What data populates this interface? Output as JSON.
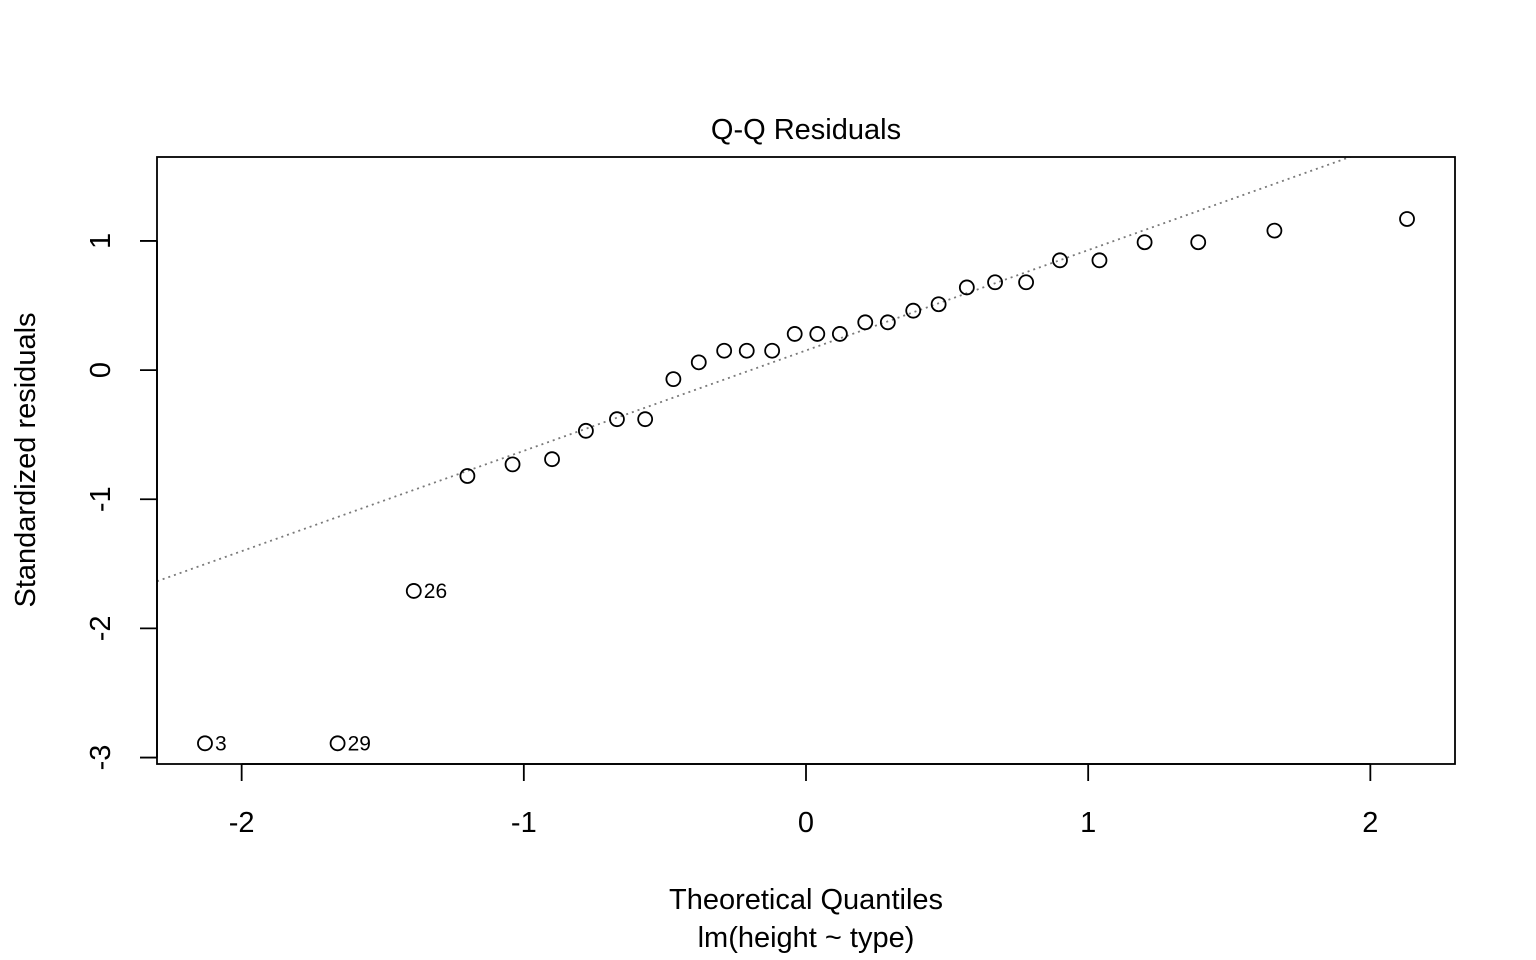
{
  "chart_data": {
    "type": "scatter",
    "title": "Q-Q Residuals",
    "xlabel": "Theoretical Quantiles",
    "sub": "lm(height ~ type)",
    "ylabel": "Standardized residuals",
    "xlim": [
      -2.3,
      2.3
    ],
    "ylim": [
      -3.05,
      1.65
    ],
    "xticks": [
      -2,
      -1,
      0,
      1,
      2
    ],
    "xtick_labels": [
      "-2",
      "-1",
      "0",
      "1",
      "2"
    ],
    "yticks": [
      -3,
      -2,
      -1,
      0,
      1
    ],
    "ytick_labels": [
      "-3",
      "-2",
      "-1",
      "0",
      "1"
    ],
    "grid": false,
    "point_style": "open circle",
    "reference_line": {
      "style": "dotted",
      "color": "#7a7a7a",
      "intercept": 0.152,
      "slope": 0.777
    },
    "points": [
      {
        "x": -2.13,
        "y": -2.89,
        "label": "3"
      },
      {
        "x": -1.66,
        "y": -2.89,
        "label": "29"
      },
      {
        "x": -1.39,
        "y": -1.71,
        "label": "26"
      },
      {
        "x": -1.2,
        "y": -0.82
      },
      {
        "x": -1.04,
        "y": -0.73
      },
      {
        "x": -0.9,
        "y": -0.69
      },
      {
        "x": -0.78,
        "y": -0.47
      },
      {
        "x": -0.67,
        "y": -0.38
      },
      {
        "x": -0.57,
        "y": -0.38
      },
      {
        "x": -0.47,
        "y": -0.07
      },
      {
        "x": -0.38,
        "y": 0.06
      },
      {
        "x": -0.29,
        "y": 0.15
      },
      {
        "x": -0.21,
        "y": 0.15
      },
      {
        "x": -0.12,
        "y": 0.15
      },
      {
        "x": -0.04,
        "y": 0.28
      },
      {
        "x": 0.04,
        "y": 0.28
      },
      {
        "x": 0.12,
        "y": 0.28
      },
      {
        "x": 0.21,
        "y": 0.37
      },
      {
        "x": 0.29,
        "y": 0.37
      },
      {
        "x": 0.38,
        "y": 0.46
      },
      {
        "x": 0.47,
        "y": 0.51
      },
      {
        "x": 0.57,
        "y": 0.64
      },
      {
        "x": 0.67,
        "y": 0.68
      },
      {
        "x": 0.78,
        "y": 0.68
      },
      {
        "x": 0.9,
        "y": 0.85
      },
      {
        "x": 1.04,
        "y": 0.85
      },
      {
        "x": 1.2,
        "y": 0.99
      },
      {
        "x": 1.39,
        "y": 0.99
      },
      {
        "x": 1.66,
        "y": 1.08
      },
      {
        "x": 2.13,
        "y": 1.17
      }
    ]
  }
}
